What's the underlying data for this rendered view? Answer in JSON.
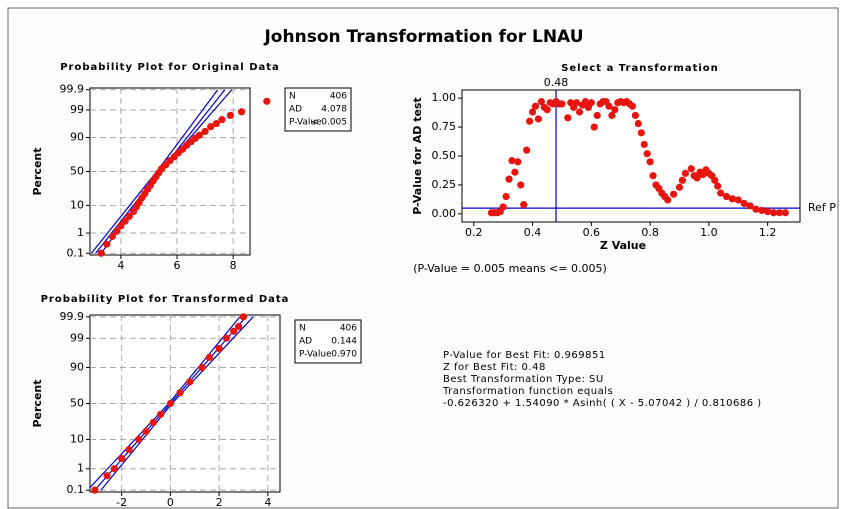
{
  "title": "Johnson Transformation for LNAU",
  "chart_data": [
    {
      "type": "probability",
      "title": "Probability Plot for Original Data",
      "ylabel": "Percent",
      "x": [
        3.3,
        3.5,
        3.7,
        3.85,
        4.0,
        4.15,
        4.3,
        4.45,
        4.55,
        4.65,
        4.75,
        4.85,
        4.95,
        5.05,
        5.15,
        5.25,
        5.35,
        5.45,
        5.6,
        5.75,
        5.9,
        6.05,
        6.2,
        6.35,
        6.5,
        6.65,
        6.8,
        7.0,
        7.2,
        7.4,
        7.6,
        7.9,
        8.3,
        9.2
      ],
      "values": [
        0.1,
        0.3,
        0.7,
        1.2,
        2,
        3,
        4.5,
        6.5,
        9,
        12,
        16,
        20,
        25,
        30,
        36,
        42,
        48,
        54,
        60,
        66,
        71,
        76,
        80,
        84,
        87,
        89.5,
        91.5,
        93.5,
        95.5,
        96.5,
        97.5,
        98.3,
        98.8,
        99.6
      ],
      "color": "#e8150f",
      "line_color": "#0000cc",
      "fit": {
        "x": [
          3.1,
          7.7
        ],
        "values": [
          0.1,
          99.9
        ]
      },
      "bands": [
        {
          "x": [
            2.95,
            5.28,
            7.45
          ],
          "values": [
            0.1,
            50,
            99.9
          ]
        },
        {
          "x": [
            3.3,
            5.42,
            7.95
          ],
          "values": [
            0.1,
            50,
            99.9
          ]
        }
      ],
      "xlim": [
        2.9,
        8.6
      ],
      "ylim": [
        0.08,
        99.92
      ],
      "xticks": [
        4,
        6,
        8
      ],
      "yticks": [
        0.1,
        1,
        10,
        50,
        90,
        99,
        99.9
      ],
      "grid": true,
      "stats": [
        [
          "N",
          "406"
        ],
        [
          "AD",
          "4.078"
        ],
        [
          "P-Value",
          "< 0.005"
        ]
      ]
    },
    {
      "type": "scatter",
      "title": "Select a Transformation",
      "xlabel": "Z Value",
      "ylabel": "P-Value for AD test",
      "x": [
        0.26,
        0.27,
        0.28,
        0.29,
        0.3,
        0.31,
        0.32,
        0.33,
        0.34,
        0.35,
        0.36,
        0.37,
        0.38,
        0.39,
        0.4,
        0.41,
        0.42,
        0.43,
        0.44,
        0.45,
        0.46,
        0.47,
        0.48,
        0.49,
        0.5,
        0.52,
        0.53,
        0.54,
        0.55,
        0.56,
        0.57,
        0.58,
        0.59,
        0.6,
        0.61,
        0.62,
        0.63,
        0.64,
        0.65,
        0.66,
        0.67,
        0.68,
        0.69,
        0.7,
        0.71,
        0.72,
        0.73,
        0.74,
        0.75,
        0.76,
        0.77,
        0.78,
        0.79,
        0.8,
        0.81,
        0.82,
        0.83,
        0.84,
        0.85,
        0.86,
        0.88,
        0.9,
        0.91,
        0.92,
        0.94,
        0.95,
        0.96,
        0.97,
        0.98,
        0.99,
        1.0,
        1.01,
        1.02,
        1.03,
        1.04,
        1.06,
        1.08,
        1.1,
        1.12,
        1.14,
        1.16,
        1.18,
        1.2,
        1.22,
        1.24,
        1.26
      ],
      "values": [
        0.01,
        0.01,
        0.01,
        0.02,
        0.06,
        0.15,
        0.3,
        0.46,
        0.36,
        0.45,
        0.25,
        0.08,
        0.55,
        0.8,
        0.88,
        0.93,
        0.82,
        0.97,
        0.92,
        0.9,
        0.96,
        0.95,
        0.97,
        0.95,
        0.95,
        0.83,
        0.96,
        0.92,
        0.96,
        0.88,
        0.94,
        0.97,
        0.92,
        0.96,
        0.75,
        0.85,
        0.95,
        0.97,
        0.97,
        0.93,
        0.85,
        0.9,
        0.96,
        0.97,
        0.96,
        0.97,
        0.95,
        0.93,
        0.85,
        0.78,
        0.7,
        0.6,
        0.52,
        0.45,
        0.33,
        0.25,
        0.22,
        0.18,
        0.15,
        0.12,
        0.17,
        0.23,
        0.29,
        0.35,
        0.39,
        0.33,
        0.31,
        0.36,
        0.34,
        0.38,
        0.35,
        0.33,
        0.29,
        0.24,
        0.18,
        0.15,
        0.13,
        0.12,
        0.09,
        0.07,
        0.04,
        0.03,
        0.02,
        0.01,
        0.01,
        0.01
      ],
      "color": "#e8150f",
      "line_color": "#0000cc",
      "vline": 0.48,
      "ref_line": {
        "value": 0.05,
        "label": "Ref P"
      },
      "xlim": [
        0.16,
        1.31
      ],
      "ylim": [
        -0.07,
        1.07
      ],
      "xticks": [
        0.2,
        0.4,
        0.6,
        0.8,
        {
          "value": 1,
          "label": "1.0"
        },
        1.2
      ],
      "yticks": [
        {
          "value": 0,
          "label": "0.00"
        },
        {
          "value": 0.25,
          "label": "0.25"
        },
        {
          "value": 0.5,
          "label": "0.50"
        },
        {
          "value": 0.75,
          "label": "0.75"
        },
        {
          "value": 1,
          "label": "1.00"
        }
      ],
      "grid": false,
      "note": "(P-Value = 0.005 means <= 0.005)"
    },
    {
      "type": "probability",
      "title": "Probability Plot for Transformed Data",
      "ylabel": "Percent",
      "x": [
        -3.1,
        -2.6,
        -2.3,
        -2.0,
        -1.7,
        -1.3,
        -1.0,
        -0.7,
        -0.4,
        0,
        0.4,
        0.8,
        1.3,
        1.6,
        2.0,
        2.3,
        2.6,
        2.8,
        3.0
      ],
      "values": [
        0.1,
        0.5,
        1,
        2.5,
        5,
        10,
        16,
        25,
        35,
        50,
        65,
        78,
        90,
        95,
        97.5,
        99,
        99.5,
        99.7,
        99.9
      ],
      "color": "#e8150f",
      "line_color": "#0000cc",
      "fit": {
        "x": [
          -3.1,
          3.1
        ],
        "values": [
          0.1,
          99.9
        ]
      },
      "bands": [
        {
          "x": [
            -3.4,
            -0.07,
            2.85
          ],
          "values": [
            0.1,
            50,
            99.9
          ]
        },
        {
          "x": [
            -2.85,
            0.07,
            3.4
          ],
          "values": [
            0.1,
            50,
            99.9
          ]
        }
      ],
      "xlim": [
        -3.3,
        4.5
      ],
      "ylim": [
        0.08,
        99.92
      ],
      "xticks": [
        -2,
        0,
        2,
        4
      ],
      "yticks": [
        0.1,
        1,
        10,
        50,
        90,
        99,
        99.9
      ],
      "grid": true,
      "stats": [
        [
          "N",
          "406"
        ],
        [
          "AD",
          "0.144"
        ],
        [
          "P-Value",
          "0.970"
        ]
      ]
    }
  ],
  "summary": [
    "P-Value for Best Fit: 0.969851",
    "Z for Best Fit: 0.48",
    "Best Transformation Type: SU",
    "Transformation function equals",
    "-0.626320 + 1.54090 * Asinh( ( X - 5.07042 ) / 0.810686 )"
  ]
}
